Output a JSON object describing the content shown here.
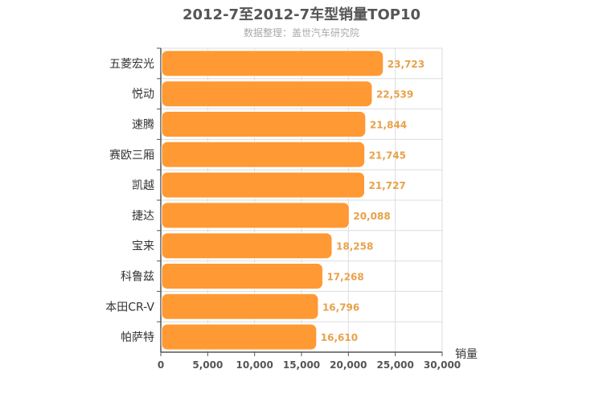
{
  "chart_data": {
    "type": "bar",
    "orientation": "horizontal",
    "title": "2012-7至2012-7车型销量TOP10",
    "subtitle": "数据整理：盖世汽车研究院",
    "xlabel": "销量",
    "ylabel": "",
    "categories": [
      "五菱宏光",
      "悦动",
      "速腾",
      "赛欧三厢",
      "凯越",
      "捷达",
      "宝来",
      "科鲁兹",
      "本田CR-V",
      "帕萨特"
    ],
    "values": [
      23723,
      22539,
      21844,
      21745,
      21727,
      20088,
      18258,
      17268,
      16796,
      16610
    ],
    "value_labels": [
      "23,723",
      "22,539",
      "21,844",
      "21,745",
      "21,727",
      "20,088",
      "18,258",
      "17,268",
      "16,796",
      "16,610"
    ],
    "xlim": [
      0,
      30000
    ],
    "xticks": [
      0,
      5000,
      10000,
      15000,
      20000,
      25000,
      30000
    ],
    "xtick_labels": [
      "0",
      "5,000",
      "10,000",
      "15,000",
      "20,000",
      "25,000",
      "30,000"
    ],
    "grid": true,
    "colors": {
      "bar": "#FF9933",
      "value_label": "#E8A14A",
      "grid": "#dddddd",
      "axis": "#555555"
    }
  }
}
